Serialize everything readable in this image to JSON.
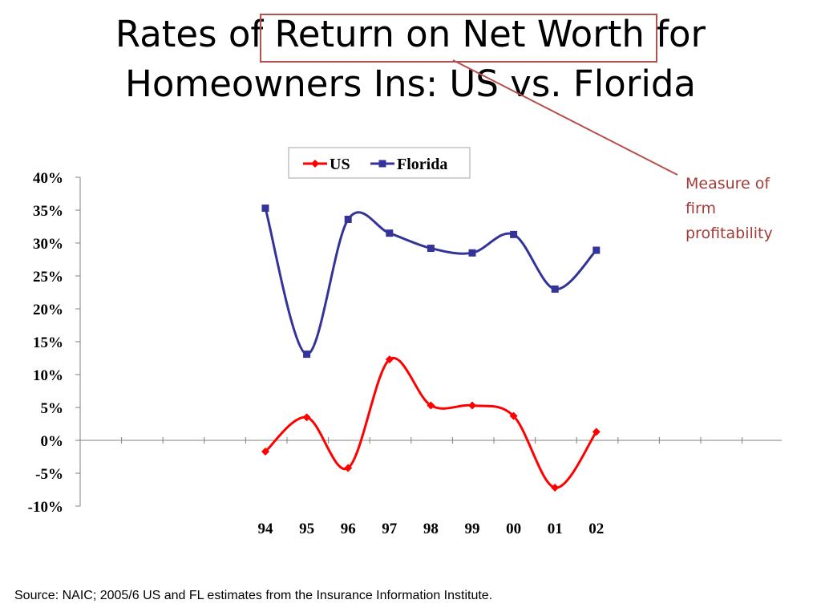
{
  "title": {
    "line1": "Rates of Return on Net Worth for",
    "line2": "Homeowners Ins: US vs. Florida",
    "highlight": "Return on Net Worth"
  },
  "callout": {
    "lines": [
      "Measure of",
      "firm",
      "profitability"
    ],
    "color": "#a33b38"
  },
  "source": "Source:  NAIC; 2005/6 US and FL estimates from the Insurance Information Institute.",
  "chart_data": {
    "type": "line",
    "title": "Rates of Return on Net Worth for Homeowners Ins: US vs. Florida",
    "xlabel": "",
    "ylabel": "",
    "categories": [
      "94",
      "95",
      "96",
      "97",
      "98",
      "99",
      "00",
      "01",
      "02"
    ],
    "ylim": [
      -10,
      40
    ],
    "ystep": 5,
    "ytick_labels": [
      "-10%",
      "-5%",
      "0%",
      "5%",
      "10%",
      "15%",
      "20%",
      "25%",
      "30%",
      "35%",
      "40%"
    ],
    "legend_position": "top-center",
    "grid": false,
    "series": [
      {
        "name": "US",
        "color": "#ff0000",
        "marker": "diamond",
        "values": [
          -1.7,
          3.5,
          -4.2,
          12.3,
          5.3,
          5.3,
          3.7,
          -7.2,
          1.3
        ]
      },
      {
        "name": "Florida",
        "color": "#333399",
        "marker": "square",
        "values": [
          35.3,
          13.1,
          33.6,
          31.5,
          29.2,
          28.5,
          31.3,
          23.0,
          28.9
        ]
      }
    ]
  }
}
